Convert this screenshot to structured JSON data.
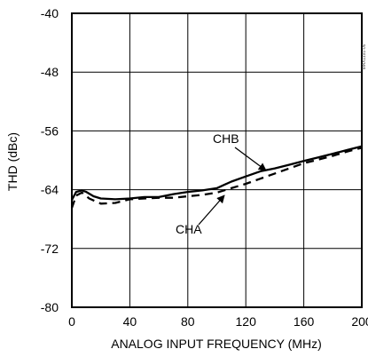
{
  "chart_data": {
    "type": "line",
    "xlabel": "ANALOG INPUT FREQUENCY (MHz)",
    "ylabel": "THD (dBc)",
    "xlim": [
      0,
      200
    ],
    "ylim": [
      -80,
      -40
    ],
    "x_ticks": [
      "0",
      "40",
      "80",
      "120",
      "160",
      "200"
    ],
    "y_ticks": [
      "-40",
      "-48",
      "-56",
      "-64",
      "-72",
      "-80"
    ],
    "x_tick_values": [
      0,
      40,
      80,
      120,
      160,
      200
    ],
    "y_tick_values": [
      -40,
      -48,
      -56,
      -64,
      -72,
      -80
    ],
    "grid": true,
    "watermark": "MAX1191-06",
    "series": [
      {
        "name": "CHB",
        "style": "solid",
        "x": [
          0,
          3,
          7,
          10,
          15,
          20,
          30,
          40,
          50,
          60,
          70,
          80,
          90,
          100,
          110,
          120,
          130,
          140,
          150,
          160,
          170,
          180,
          190,
          200
        ],
        "y": [
          -65.4,
          -64.3,
          -64.1,
          -64.3,
          -64.9,
          -65.2,
          -65.3,
          -65.2,
          -65.0,
          -65.0,
          -64.6,
          -64.3,
          -64.1,
          -63.8,
          -62.9,
          -62.2,
          -61.5,
          -61.1,
          -60.6,
          -60.1,
          -59.6,
          -59.1,
          -58.6,
          -58.1
        ]
      },
      {
        "name": "CHA",
        "style": "dashed",
        "x": [
          0,
          3,
          7,
          12,
          20,
          30,
          40,
          50,
          60,
          70,
          80,
          90,
          100,
          110,
          120,
          130,
          140,
          150,
          160,
          170,
          180,
          190,
          200
        ],
        "y": [
          -66.5,
          -64.8,
          -64.4,
          -65.2,
          -65.9,
          -65.8,
          -65.3,
          -65.2,
          -65.1,
          -65.1,
          -64.9,
          -64.7,
          -64.4,
          -63.8,
          -63.2,
          -62.5,
          -61.8,
          -61.1,
          -60.4,
          -59.9,
          -59.4,
          -58.8,
          -58.3
        ]
      }
    ],
    "annotations": [
      {
        "text": "CHB",
        "series": "CHB"
      },
      {
        "text": "CHA",
        "series": "CHA"
      }
    ]
  },
  "colors": {
    "line": "#000000",
    "grid": "#000000",
    "background": "#ffffff"
  }
}
